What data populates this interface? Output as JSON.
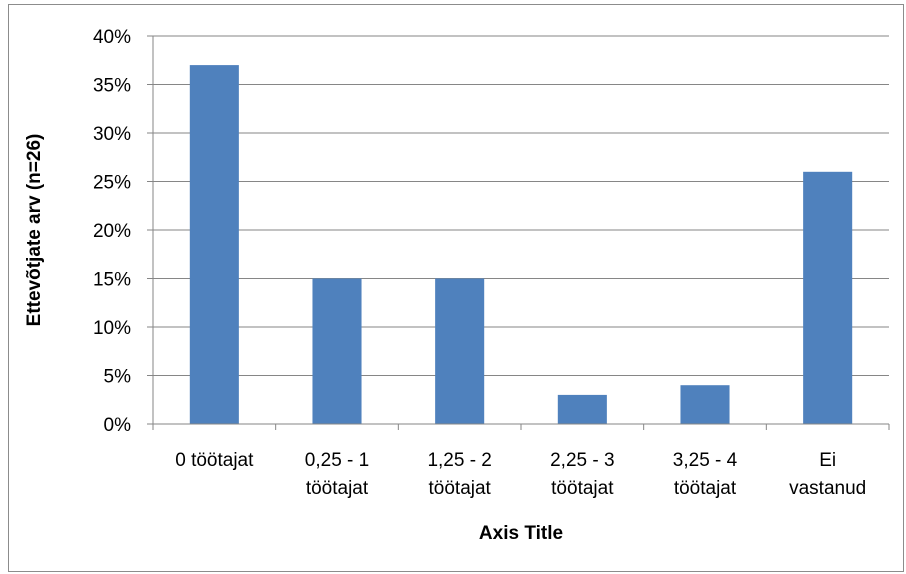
{
  "chart_data": {
    "type": "bar",
    "categories": [
      [
        "0 töötajat"
      ],
      [
        "0,25 - 1",
        "töötajat"
      ],
      [
        "1,25 - 2",
        "töötajat"
      ],
      [
        "2,25 - 3",
        "töötajat"
      ],
      [
        "3,25 - 4",
        "töötajat"
      ],
      [
        "Ei",
        "vastanud"
      ]
    ],
    "values": [
      37,
      15,
      15,
      3,
      4,
      26
    ],
    "value_format": "percent",
    "xlabel": "Axis Title",
    "ylabel": "Ettevõtjate arv (n=26)",
    "ylim": [
      0,
      40
    ],
    "yticks": [
      "0%",
      "5%",
      "10%",
      "15%",
      "20%",
      "25%",
      "30%",
      "35%",
      "40%"
    ],
    "grid": true,
    "legend": "none",
    "colors": {
      "bar": "#4f81bd",
      "grid": "#868686",
      "axis": "#868686"
    }
  }
}
